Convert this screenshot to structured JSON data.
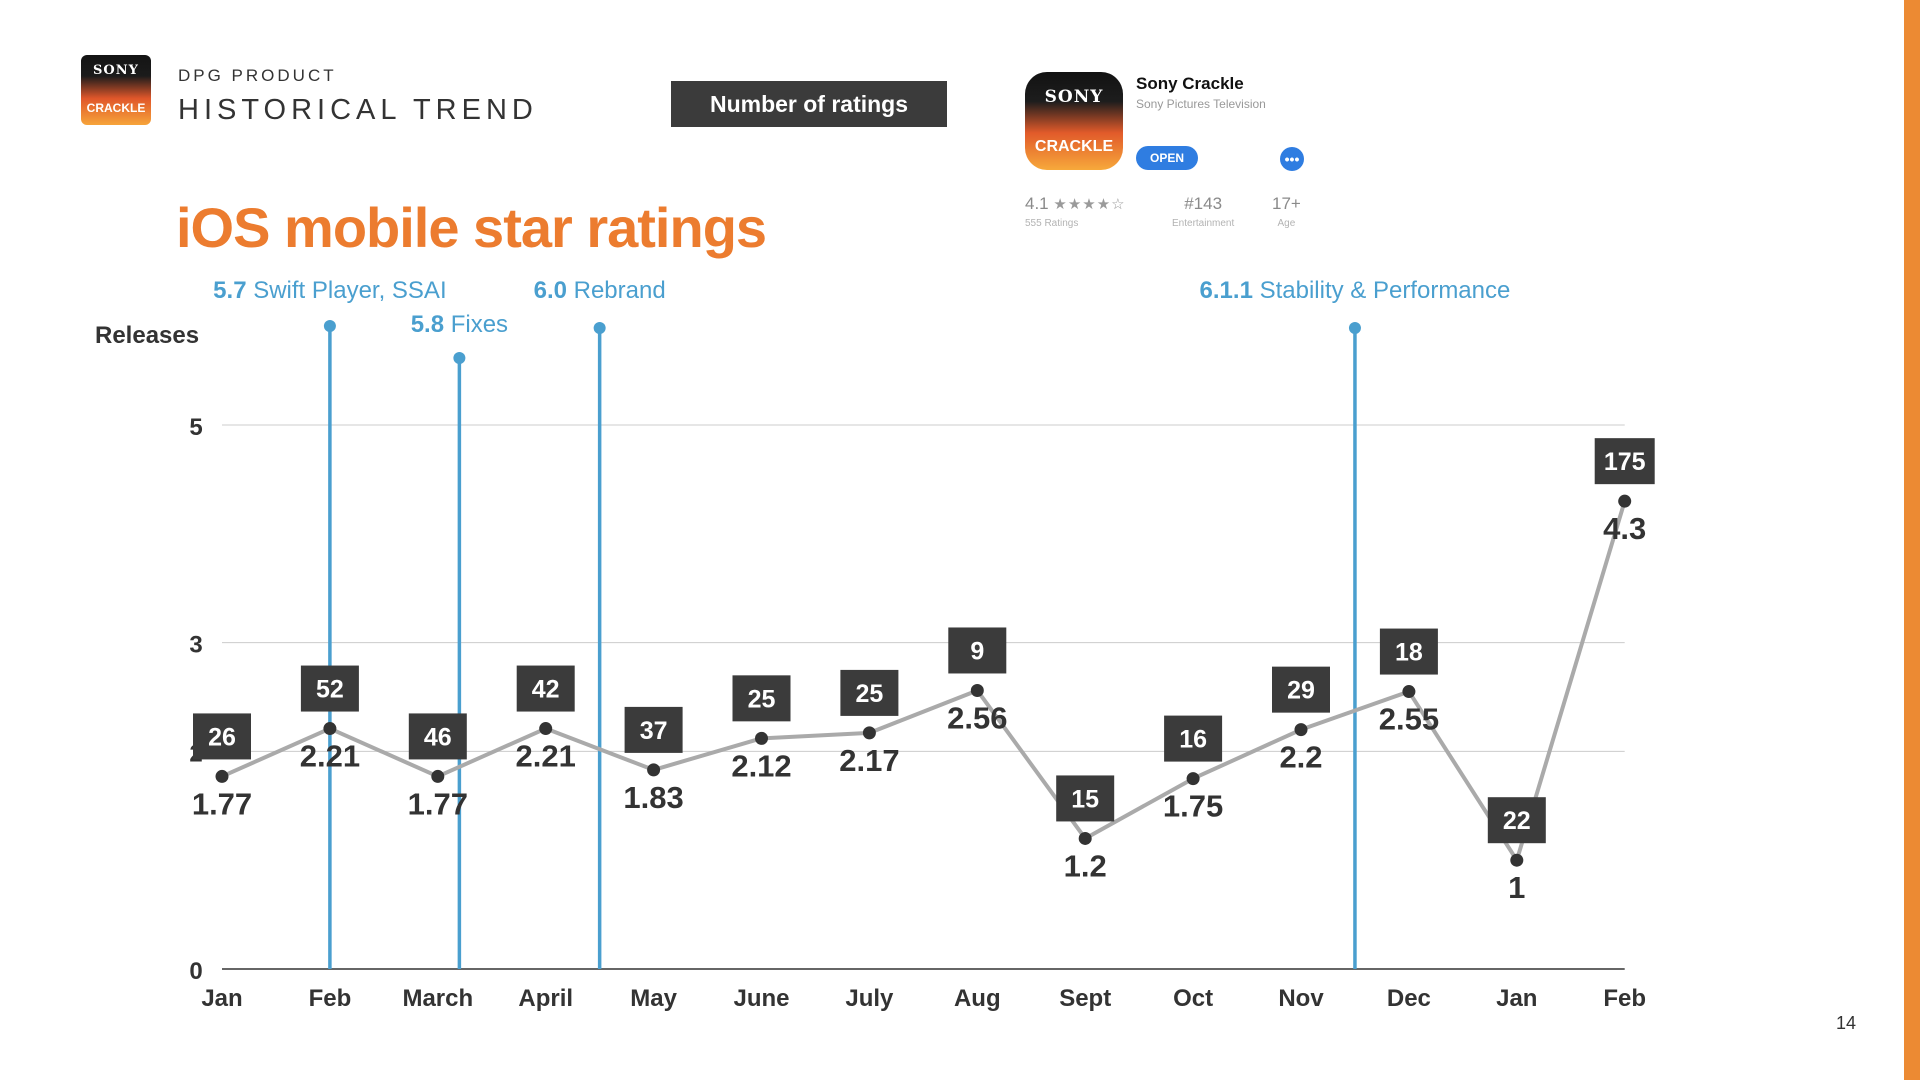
{
  "header": {
    "logo_brand": "SONY",
    "logo_sub": "CRACKLE",
    "eyebrow": "DPG PRODUCT",
    "title": "HISTORICAL TREND",
    "metric_label": "Number of ratings",
    "headline": "iOS mobile star ratings",
    "page_number": "14"
  },
  "app_card": {
    "icon_brand": "SONY",
    "icon_sub": "CRACKLE",
    "name": "Sony Crackle",
    "developer": "Sony Pictures Television",
    "open_label": "OPEN",
    "more_label": "•••",
    "rating": "4.1",
    "stars": "★★★★☆",
    "ratings_count": "555 Ratings",
    "rank": "#143",
    "rank_label": "Entertainment",
    "age": "17+",
    "age_label": "Age"
  },
  "colors": {
    "accent": "#ec7c2f",
    "release_line": "#4a9fcf",
    "series_line": "#aaaaaa",
    "point": "#333333",
    "label_box": "#3b3b3b",
    "grid": "#cccccc"
  },
  "chart_data": {
    "type": "line",
    "ylabel": "Releases",
    "ylim": [
      0,
      6
    ],
    "yticks": [
      0,
      2,
      3,
      5
    ],
    "grid": true,
    "categories": [
      "Jan",
      "Feb",
      "March",
      "April",
      "May",
      "June",
      "July",
      "Aug",
      "Sept",
      "Oct",
      "Nov",
      "Dec",
      "Jan",
      "Feb"
    ],
    "series": [
      {
        "values": [
          1.77,
          2.21,
          1.77,
          2.21,
          1.83,
          2.12,
          2.17,
          2.56,
          1.2,
          1.75,
          2.2,
          2.55,
          1,
          4.3
        ],
        "value_labels": [
          "1.77",
          "2.21",
          "1.77",
          "2.21",
          "1.83",
          "2.12",
          "2.17",
          "2.56",
          "1.2",
          "1.75",
          "2.2",
          "2.55",
          "1",
          "4.3"
        ]
      }
    ],
    "counts": [
      26,
      52,
      46,
      42,
      37,
      25,
      25,
      9,
      15,
      16,
      29,
      18,
      22,
      175
    ],
    "releases": [
      {
        "version": "5.7",
        "label": "Swift Player, SSAI",
        "x": 1.0
      },
      {
        "version": "5.8",
        "label": "Fixes",
        "x": 2.2
      },
      {
        "version": "6.0",
        "label": "Rebrand",
        "x": 3.5
      },
      {
        "version": "6.1.1",
        "label": "Stability & Performance",
        "x": 10.5
      }
    ]
  }
}
